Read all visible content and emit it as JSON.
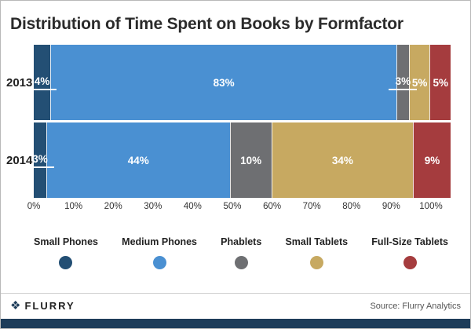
{
  "title": "Distribution of Time Spent on Books by Formfactor",
  "chart_data": {
    "type": "bar",
    "stacked": true,
    "orientation": "horizontal",
    "title": "Distribution of Time Spent on Books by Formfactor",
    "categories": [
      "2013",
      "2014"
    ],
    "series": [
      {
        "name": "Small Phones",
        "color": "#234F74",
        "values": [
          4,
          3
        ]
      },
      {
        "name": "Medium Phones",
        "color": "#4A90D2",
        "values": [
          83,
          44
        ]
      },
      {
        "name": "Phablets",
        "color": "#6E6F72",
        "values": [
          3,
          10
        ]
      },
      {
        "name": "Small Tablets",
        "color": "#C7A961",
        "values": [
          5,
          34
        ]
      },
      {
        "name": "Full-Size Tablets",
        "color": "#A53C3E",
        "values": [
          5,
          9
        ]
      }
    ],
    "value_labels": {
      "2013": [
        "4%",
        "83%",
        "3%",
        "5%",
        "5%"
      ],
      "2014": [
        "3%",
        "44%",
        "10%",
        "34%",
        "9%"
      ]
    },
    "x_ticks": [
      "0%",
      "10%",
      "20%",
      "30%",
      "40%",
      "50%",
      "60%",
      "70%",
      "80%",
      "90%",
      "100%"
    ],
    "xlim": [
      0,
      100
    ],
    "legend_position": "bottom",
    "grid": false
  },
  "footer": {
    "brand": "FLURRY",
    "source": "Source: Flurry Analytics"
  },
  "colors": {
    "bottom_strip": "#1d3c59",
    "background": "#ffffff"
  }
}
